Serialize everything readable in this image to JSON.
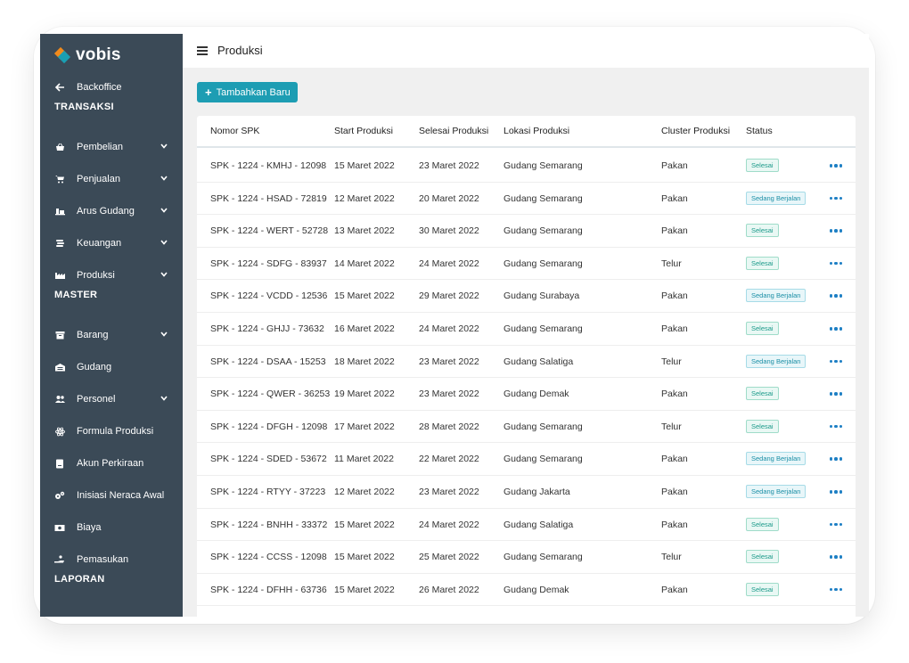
{
  "brand": {
    "name": "vobis"
  },
  "header": {
    "title": "Produksi"
  },
  "sidebar": {
    "back": {
      "label": "Backoffice",
      "icon": "arrow-left-icon"
    },
    "sections": [
      {
        "title": "TRANSAKSI",
        "items": [
          {
            "label": "Pembelian",
            "icon": "basket-icon",
            "has_submenu": true
          },
          {
            "label": "Penjualan",
            "icon": "cart-icon",
            "has_submenu": true
          },
          {
            "label": "Arus Gudang",
            "icon": "warehouse-flow-icon",
            "has_submenu": true
          },
          {
            "label": "Keuangan",
            "icon": "coins-icon",
            "has_submenu": true
          },
          {
            "label": "Produksi",
            "icon": "factory-icon",
            "has_submenu": true
          }
        ]
      },
      {
        "title": "MASTER",
        "items": [
          {
            "label": "Barang",
            "icon": "box-icon",
            "has_submenu": true
          },
          {
            "label": "Gudang",
            "icon": "warehouse-icon",
            "has_submenu": false
          },
          {
            "label": "Personel",
            "icon": "users-icon",
            "has_submenu": true
          },
          {
            "label": "Formula Produksi",
            "icon": "atom-icon",
            "has_submenu": false
          },
          {
            "label": "Akun Perkiraan",
            "icon": "book-icon",
            "has_submenu": false
          },
          {
            "label": "Inisiasi Neraca Awal",
            "icon": "gears-icon",
            "has_submenu": false
          },
          {
            "label": "Biaya",
            "icon": "money-icon",
            "has_submenu": false
          },
          {
            "label": "Pemasukan",
            "icon": "hand-coin-icon",
            "has_submenu": false
          }
        ]
      },
      {
        "title": "LAPORAN",
        "items": []
      }
    ]
  },
  "toolbar": {
    "add_label": "Tambahkan Baru"
  },
  "table": {
    "columns": [
      "Nomor SPK",
      "Start Produksi",
      "Selesai Produksi",
      "Lokasi Produksi",
      "Cluster Produksi",
      "Status"
    ],
    "rows": [
      {
        "spk": "SPK - 1224 - KMHJ - 12098",
        "start": "15 Maret 2022",
        "end": "23 Maret 2022",
        "lokasi": "Gudang Semarang",
        "cluster": "Pakan",
        "status": "Selesai"
      },
      {
        "spk": "SPK - 1224 - HSAD - 72819",
        "start": "12 Maret 2022",
        "end": "20 Maret 2022",
        "lokasi": "Gudang Semarang",
        "cluster": "Pakan",
        "status": "Sedang Berjalan"
      },
      {
        "spk": "SPK - 1224 - WERT - 52728",
        "start": "13 Maret 2022",
        "end": "30 Maret 2022",
        "lokasi": "Gudang Semarang",
        "cluster": "Pakan",
        "status": "Selesai"
      },
      {
        "spk": "SPK - 1224 - SDFG - 83937",
        "start": "14 Maret 2022",
        "end": "24 Maret 2022",
        "lokasi": "Gudang Semarang",
        "cluster": "Telur",
        "status": "Selesai"
      },
      {
        "spk": "SPK - 1224 - VCDD - 12536",
        "start": "15 Maret 2022",
        "end": "29 Maret 2022",
        "lokasi": "Gudang Surabaya",
        "cluster": "Pakan",
        "status": "Sedang Berjalan"
      },
      {
        "spk": "SPK - 1224 - GHJJ - 73632",
        "start": "16 Maret 2022",
        "end": "24 Maret 2022",
        "lokasi": "Gudang Semarang",
        "cluster": "Pakan",
        "status": "Selesai"
      },
      {
        "spk": "SPK - 1224 - DSAA - 15253",
        "start": "18 Maret 2022",
        "end": "23 Maret 2022",
        "lokasi": "Gudang Salatiga",
        "cluster": "Telur",
        "status": "Sedang Berjalan"
      },
      {
        "spk": "SPK - 1224 - QWER - 36253",
        "start": "19 Maret 2022",
        "end": "23 Maret 2022",
        "lokasi": "Gudang Demak",
        "cluster": "Pakan",
        "status": "Selesai"
      },
      {
        "spk": "SPK - 1224 - DFGH - 12098",
        "start": "17 Maret 2022",
        "end": "28 Maret 2022",
        "lokasi": "Gudang Semarang",
        "cluster": "Telur",
        "status": "Selesai"
      },
      {
        "spk": "SPK - 1224 - SDED - 53672",
        "start": "11 Maret 2022",
        "end": "22 Maret 2022",
        "lokasi": "Gudang Semarang",
        "cluster": "Pakan",
        "status": "Sedang Berjalan"
      },
      {
        "spk": "SPK - 1224 - RTYY - 37223",
        "start": "12 Maret 2022",
        "end": "23 Maret 2022",
        "lokasi": "Gudang Jakarta",
        "cluster": "Pakan",
        "status": "Sedang Berjalan"
      },
      {
        "spk": "SPK - 1224 - BNHH - 33372",
        "start": "15 Maret 2022",
        "end": "24 Maret 2022",
        "lokasi": "Gudang Salatiga",
        "cluster": "Pakan",
        "status": "Selesai"
      },
      {
        "spk": "SPK - 1224 - CCSS - 12098",
        "start": "15 Maret 2022",
        "end": "25 Maret 2022",
        "lokasi": "Gudang Semarang",
        "cluster": "Telur",
        "status": "Selesai"
      },
      {
        "spk": "SPK - 1224 - DFHH - 63736",
        "start": "15 Maret 2022",
        "end": "26 Maret 2022",
        "lokasi": "Gudang Demak",
        "cluster": "Pakan",
        "status": "Selesai"
      }
    ],
    "row_action_icon": "more-dots-icon"
  },
  "colors": {
    "sidebar": "#3b4a57",
    "accent": "#1d9db3",
    "status_done": "#1c9a8a",
    "status_running": "#1b8fa6",
    "action_dots": "#1d7fc4"
  }
}
